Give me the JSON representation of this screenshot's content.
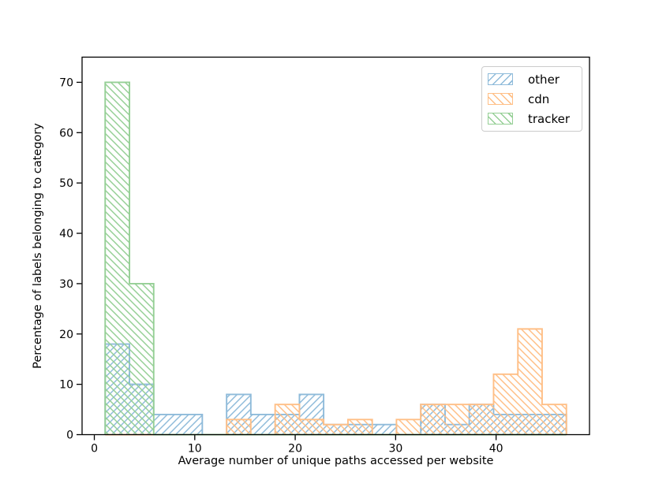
{
  "figure": {
    "xlabel": "Average number of unique paths accessed per website",
    "ylabel": "Percentage of labels belonging to category",
    "x_ticks": [
      0,
      10,
      20,
      30,
      40
    ],
    "y_ticks": [
      0,
      10,
      20,
      30,
      40,
      50,
      60,
      70
    ],
    "xlim": [
      -1.22,
      49.3
    ],
    "ylim": [
      0,
      75
    ],
    "spine_color": "#000000",
    "background": "#ffffff"
  },
  "chart_data": {
    "type": "bar",
    "subtype": "step-histogram",
    "title": "",
    "xlabel": "Average number of unique paths accessed per website",
    "ylabel": "Percentage of labels belonging to category",
    "bin_edges": [
      1.08,
      3.5,
      5.91,
      8.33,
      10.75,
      13.17,
      15.58,
      18.0,
      20.42,
      22.83,
      25.25,
      27.67,
      30.08,
      32.5,
      34.92,
      37.33,
      39.75,
      42.17,
      44.58,
      47.0
    ],
    "series": [
      {
        "name": "other",
        "color": "#8fbbda",
        "hatch": "/",
        "values": [
          18,
          10,
          4,
          4,
          0,
          8,
          4,
          4,
          8,
          2,
          2,
          2,
          0,
          6,
          2,
          6,
          4,
          4,
          4
        ]
      },
      {
        "name": "cdn",
        "color": "#ffbf86",
        "hatch": "\\",
        "values": [
          0,
          0,
          0,
          0,
          0,
          3,
          0,
          6,
          3,
          2,
          3,
          0,
          3,
          6,
          6,
          6,
          12,
          21,
          6
        ]
      },
      {
        "name": "tracker",
        "color": "#95cf95",
        "hatch": "\\",
        "values": [
          70,
          30,
          0,
          0,
          0,
          0,
          0,
          0,
          0,
          0,
          0,
          0,
          0,
          0,
          0,
          0,
          0,
          0,
          0
        ]
      }
    ],
    "legend": {
      "position": "upper right",
      "entries": [
        "other",
        "cdn",
        "tracker"
      ]
    },
    "grid": false,
    "ylim": [
      0,
      75
    ]
  }
}
